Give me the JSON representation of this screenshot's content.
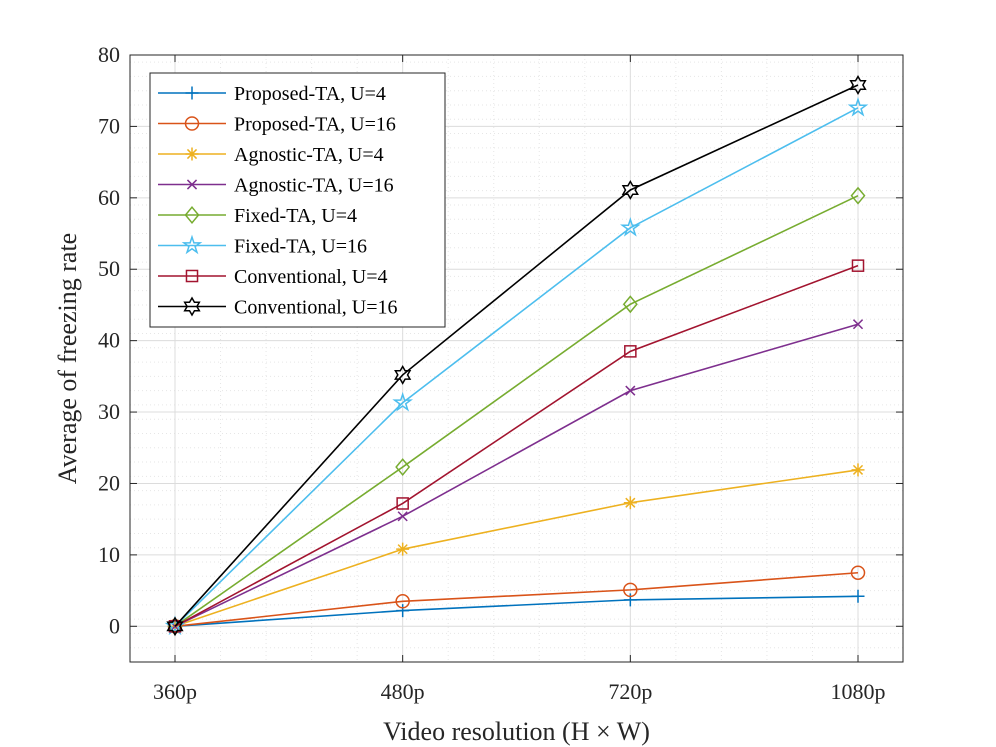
{
  "chart_data": {
    "type": "line",
    "title": "",
    "xlabel": "Video resolution (H × W)",
    "ylabel": "Average of freezing rate",
    "categories": [
      "360p",
      "480p",
      "720p",
      "1080p"
    ],
    "ylim": [
      -5,
      80
    ],
    "yticks": [
      0,
      10,
      20,
      30,
      40,
      50,
      60,
      70,
      80
    ],
    "grid": true,
    "minor_grid": true,
    "legend_position": "top-left",
    "series": [
      {
        "name": "Proposed-TA, U=4",
        "color": "#0072BD",
        "marker": "plus",
        "values": [
          0,
          2.2,
          3.7,
          4.2
        ]
      },
      {
        "name": "Proposed-TA, U=16",
        "color": "#D95319",
        "marker": "circle",
        "values": [
          0,
          3.5,
          5.1,
          7.5
        ]
      },
      {
        "name": "Agnostic-TA, U=4",
        "color": "#EDB120",
        "marker": "asterisk",
        "values": [
          0,
          10.8,
          17.3,
          21.9
        ]
      },
      {
        "name": "Agnostic-TA, U=16",
        "color": "#7E2F8E",
        "marker": "x",
        "values": [
          0,
          15.4,
          33.0,
          42.3
        ]
      },
      {
        "name": "Fixed-TA, U=4",
        "color": "#77AC30",
        "marker": "diamond",
        "values": [
          0,
          22.3,
          45.1,
          60.3
        ]
      },
      {
        "name": "Fixed-TA, U=16",
        "color": "#4DBEEE",
        "marker": "pentagram",
        "values": [
          0,
          31.3,
          55.8,
          72.6
        ]
      },
      {
        "name": "Conventional, U=4",
        "color": "#A2142F",
        "marker": "square",
        "values": [
          0,
          17.2,
          38.5,
          50.5
        ]
      },
      {
        "name": "Conventional, U=16",
        "color": "#000000",
        "marker": "hexagram",
        "values": [
          0,
          35.2,
          61.1,
          75.8
        ]
      }
    ]
  }
}
